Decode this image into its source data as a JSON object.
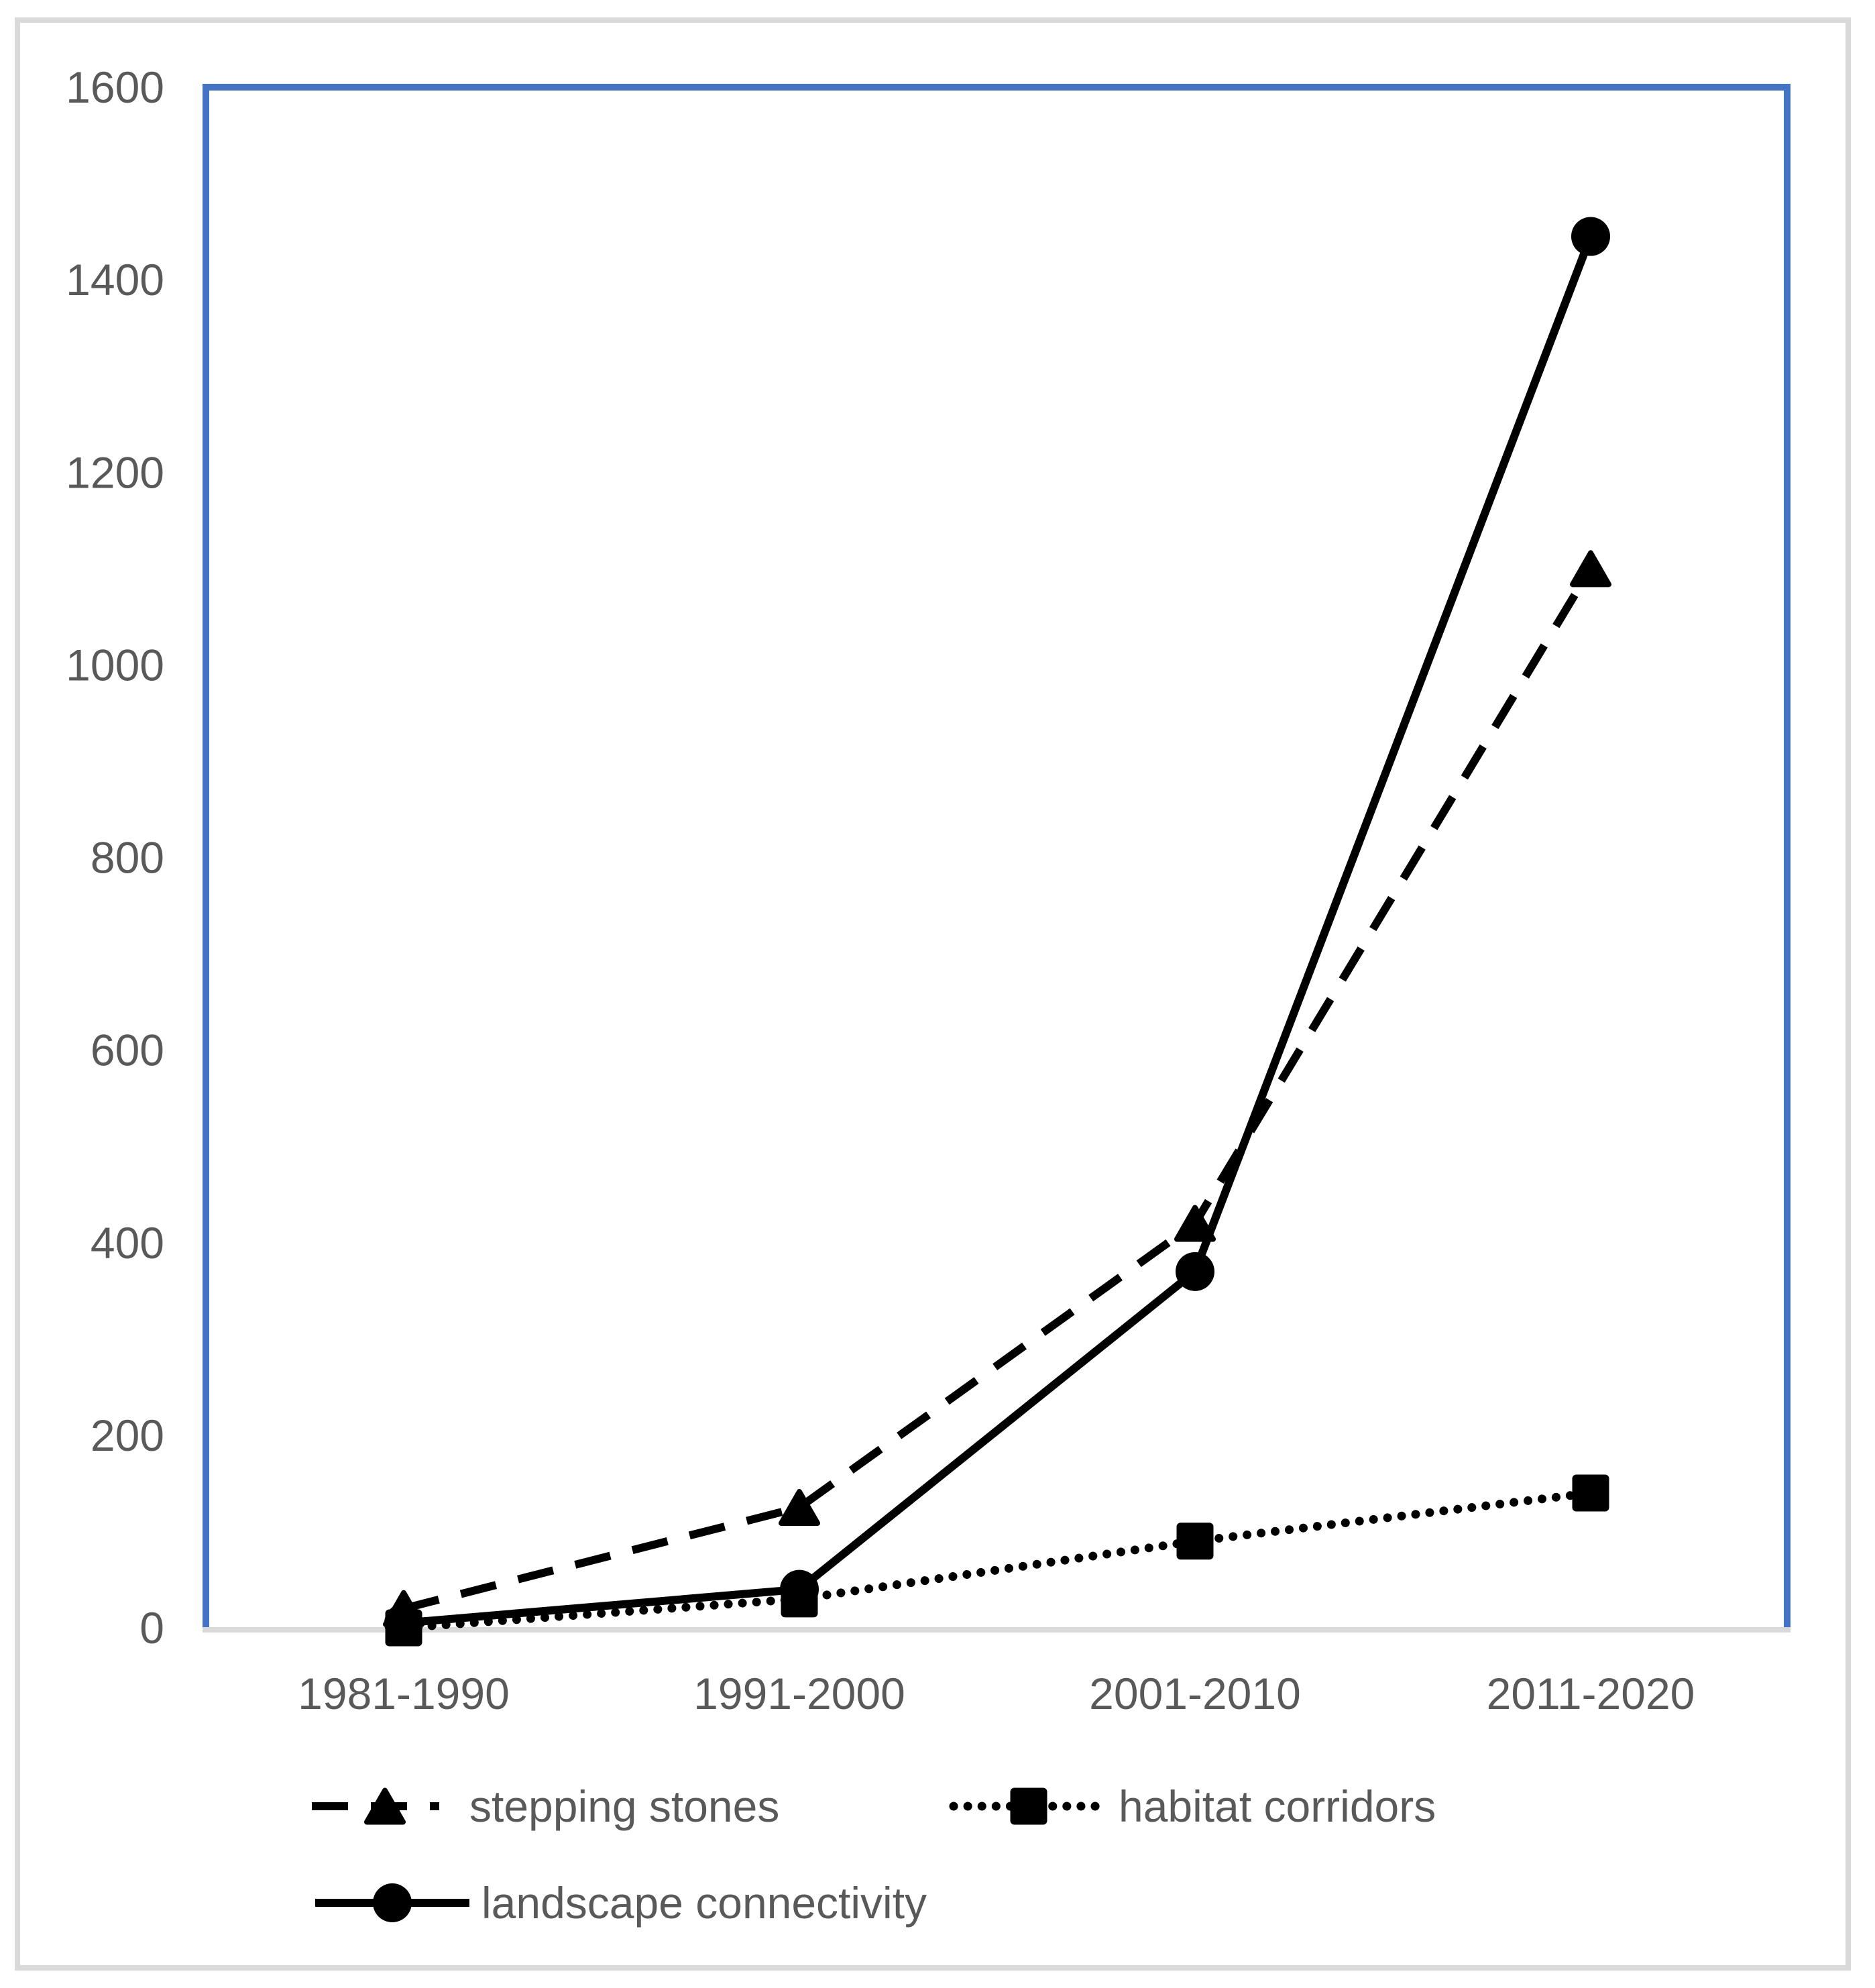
{
  "figure": {
    "description": "Line chart of publication counts per decade for three landscape-ecology search terms",
    "background_color": "#ffffff"
  },
  "colors": {
    "series": "#000000",
    "plot_border": "#4472C4",
    "frame_border": "#D9D9D9",
    "axis_line": "#D9D9D9",
    "text": "#595959"
  },
  "chart_data": {
    "type": "line",
    "title": "",
    "xlabel": "",
    "ylabel": "",
    "categories": [
      "1981-1990",
      "1991-2000",
      "2001-2010",
      "2011-2020"
    ],
    "series": [
      {
        "name": "stepping stones",
        "marker": "triangle",
        "line_style": "dashed",
        "values": [
          20,
          125,
          420,
          1100
        ]
      },
      {
        "name": "habitat corridors",
        "marker": "square",
        "line_style": "dotted",
        "values": [
          0,
          30,
          90,
          140
        ]
      },
      {
        "name": "landscape connectivity",
        "marker": "circle",
        "line_style": "solid",
        "values": [
          5,
          40,
          370,
          1445
        ]
      }
    ],
    "ylim": [
      0,
      1600
    ],
    "yticks": [
      0,
      200,
      400,
      600,
      800,
      1000,
      1200,
      1400,
      1600
    ],
    "grid": false,
    "legend_position": "bottom-left",
    "legend": {
      "rows": [
        [
          "stepping stones",
          "habitat corridors"
        ],
        [
          "landscape connectivity"
        ]
      ]
    }
  }
}
